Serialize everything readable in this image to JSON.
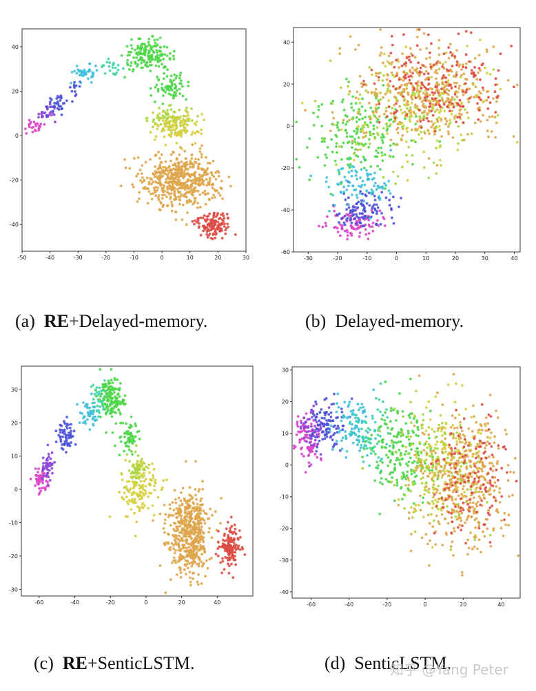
{
  "colors": {
    "magenta": "#d946c8",
    "violet": "#8a44d6",
    "blue": "#4a52d8",
    "cyan": "#3fc0d8",
    "teal": "#3fd3a8",
    "green": "#4fd64a",
    "lime": "#a8d640",
    "yellow": "#d6cf40",
    "orange": "#dea64b",
    "red": "#db4b44"
  },
  "captions": {
    "a": {
      "label": "(a)",
      "bold": "RE",
      "text": "+Delayed-memory."
    },
    "b": {
      "label": "(b)",
      "bold": "",
      "text": "Delayed-memory."
    },
    "c": {
      "label": "(c)",
      "bold": "RE",
      "text": "+SenticLSTM."
    },
    "d": {
      "label": "(d)",
      "bold": "",
      "text": "SenticLSTM."
    }
  },
  "watermark": "知乎 @Yang Peter",
  "chart_data": [
    {
      "id": "a",
      "type": "scatter",
      "title": "",
      "xlabel": "",
      "ylabel": "",
      "xlim": [
        -50,
        30
      ],
      "ylim": [
        -52,
        48
      ],
      "xticks": [
        -50,
        -40,
        -30,
        -20,
        -10,
        0,
        10,
        20,
        30
      ],
      "yticks": [
        -40,
        -20,
        0,
        20,
        40
      ],
      "grid": false,
      "clusters": [
        {
          "color": "magenta",
          "center": [
            -46,
            4
          ],
          "spread": [
            2.5,
            2
          ],
          "count": 25
        },
        {
          "color": "violet",
          "center": [
            -41,
            10
          ],
          "spread": [
            2.5,
            2
          ],
          "count": 25
        },
        {
          "color": "blue",
          "center": [
            -37,
            15
          ],
          "spread": [
            2.5,
            2.5
          ],
          "count": 35
        },
        {
          "color": "blue",
          "center": [
            -31,
            22
          ],
          "spread": [
            1.5,
            2
          ],
          "count": 12
        },
        {
          "color": "cyan",
          "center": [
            -27,
            28
          ],
          "spread": [
            2.5,
            2.5
          ],
          "count": 40
        },
        {
          "color": "teal",
          "center": [
            -18,
            31
          ],
          "spread": [
            2.5,
            1.5
          ],
          "count": 20
        },
        {
          "color": "green",
          "center": [
            -5,
            36
          ],
          "spread": [
            5,
            4
          ],
          "count": 170
        },
        {
          "color": "green",
          "center": [
            3,
            22
          ],
          "spread": [
            3.5,
            3.5
          ],
          "count": 70
        },
        {
          "color": "lime",
          "center": [
            3,
            8
          ],
          "spread": [
            4.5,
            3
          ],
          "count": 70
        },
        {
          "color": "yellow",
          "center": [
            5,
            4
          ],
          "spread": [
            5,
            4
          ],
          "count": 110
        },
        {
          "color": "orange",
          "center": [
            7,
            -20
          ],
          "spread": [
            8,
            7
          ],
          "count": 520
        },
        {
          "color": "red",
          "center": [
            18,
            -40
          ],
          "spread": [
            4,
            3.5
          ],
          "count": 130
        }
      ]
    },
    {
      "id": "b",
      "type": "scatter",
      "title": "",
      "xlabel": "",
      "ylabel": "",
      "xlim": [
        -35,
        42
      ],
      "ylim": [
        -60,
        47
      ],
      "xticks": [
        -30,
        -20,
        -10,
        0,
        10,
        20,
        30,
        40
      ],
      "yticks": [
        -60,
        -40,
        -20,
        0,
        20,
        40
      ],
      "grid": false,
      "clusters": [
        {
          "color": "magenta",
          "center": [
            -14,
            -46
          ],
          "spread": [
            5,
            4
          ],
          "count": 100
        },
        {
          "color": "blue",
          "center": [
            -11,
            -40
          ],
          "spread": [
            6,
            5
          ],
          "count": 100
        },
        {
          "color": "cyan",
          "center": [
            -14,
            -26
          ],
          "spread": [
            7,
            7
          ],
          "count": 90
        },
        {
          "color": "green",
          "center": [
            -12,
            -4
          ],
          "spread": [
            10,
            12
          ],
          "count": 180
        },
        {
          "color": "lime",
          "center": [
            2,
            3
          ],
          "spread": [
            14,
            16
          ],
          "count": 130
        },
        {
          "color": "yellow",
          "center": [
            8,
            10
          ],
          "spread": [
            14,
            15
          ],
          "count": 130
        },
        {
          "color": "orange",
          "center": [
            10,
            15
          ],
          "spread": [
            14,
            14
          ],
          "count": 380
        },
        {
          "color": "red",
          "center": [
            14,
            20
          ],
          "spread": [
            13,
            13
          ],
          "count": 180
        }
      ]
    },
    {
      "id": "c",
      "type": "scatter",
      "title": "",
      "xlabel": "",
      "ylabel": "",
      "xlim": [
        -70,
        60
      ],
      "ylim": [
        -32,
        37
      ],
      "xticks": [
        -60,
        -40,
        -20,
        0,
        20,
        40
      ],
      "yticks": [
        -30,
        -20,
        -10,
        0,
        10,
        20,
        30
      ],
      "grid": false,
      "clusters": [
        {
          "color": "magenta",
          "center": [
            -59,
            3
          ],
          "spread": [
            2.5,
            2.5
          ],
          "count": 50
        },
        {
          "color": "violet",
          "center": [
            -55,
            7
          ],
          "spread": [
            2.5,
            2.5
          ],
          "count": 40
        },
        {
          "color": "blue",
          "center": [
            -45,
            16
          ],
          "spread": [
            3,
            3
          ],
          "count": 60
        },
        {
          "color": "cyan",
          "center": [
            -32,
            23
          ],
          "spread": [
            4,
            2.5
          ],
          "count": 50
        },
        {
          "color": "teal",
          "center": [
            -25,
            27
          ],
          "spread": [
            3,
            3
          ],
          "count": 40
        },
        {
          "color": "green",
          "center": [
            -19,
            27
          ],
          "spread": [
            4,
            4
          ],
          "count": 150
        },
        {
          "color": "green",
          "center": [
            -10,
            15
          ],
          "spread": [
            3.5,
            3
          ],
          "count": 60
        },
        {
          "color": "lime",
          "center": [
            -5,
            6
          ],
          "spread": [
            3,
            3
          ],
          "count": 60
        },
        {
          "color": "yellow",
          "center": [
            -3,
            0
          ],
          "spread": [
            6,
            5
          ],
          "count": 130
        },
        {
          "color": "orange",
          "center": [
            24,
            -13
          ],
          "spread": [
            7,
            7.5
          ],
          "count": 520
        },
        {
          "color": "red",
          "center": [
            47,
            -17
          ],
          "spread": [
            3.5,
            4
          ],
          "count": 140
        }
      ]
    },
    {
      "id": "d",
      "type": "scatter",
      "title": "",
      "xlabel": "",
      "ylabel": "",
      "xlim": [
        -70,
        50
      ],
      "ylim": [
        -42,
        31
      ],
      "xticks": [
        -60,
        -40,
        -20,
        0,
        20,
        40
      ],
      "yticks": [
        -40,
        -30,
        -20,
        -10,
        0,
        10,
        20,
        30
      ],
      "grid": false,
      "clusters": [
        {
          "color": "magenta",
          "center": [
            -62,
            8
          ],
          "spread": [
            4,
            5
          ],
          "count": 80
        },
        {
          "color": "violet",
          "center": [
            -59,
            11
          ],
          "spread": [
            4,
            5
          ],
          "count": 60
        },
        {
          "color": "blue",
          "center": [
            -51,
            13
          ],
          "spread": [
            5,
            5
          ],
          "count": 90
        },
        {
          "color": "cyan",
          "center": [
            -38,
            12
          ],
          "spread": [
            6,
            5
          ],
          "count": 90
        },
        {
          "color": "teal",
          "center": [
            -28,
            11
          ],
          "spread": [
            6,
            6
          ],
          "count": 60
        },
        {
          "color": "green",
          "center": [
            -13,
            5
          ],
          "spread": [
            10,
            9
          ],
          "count": 200
        },
        {
          "color": "lime",
          "center": [
            5,
            0
          ],
          "spread": [
            14,
            11
          ],
          "count": 150
        },
        {
          "color": "yellow",
          "center": [
            12,
            2
          ],
          "spread": [
            13,
            12
          ],
          "count": 150
        },
        {
          "color": "orange",
          "center": [
            20,
            -5
          ],
          "spread": [
            13,
            13
          ],
          "count": 420
        },
        {
          "color": "red",
          "center": [
            25,
            -5
          ],
          "spread": [
            11,
            11
          ],
          "count": 130
        }
      ]
    }
  ]
}
